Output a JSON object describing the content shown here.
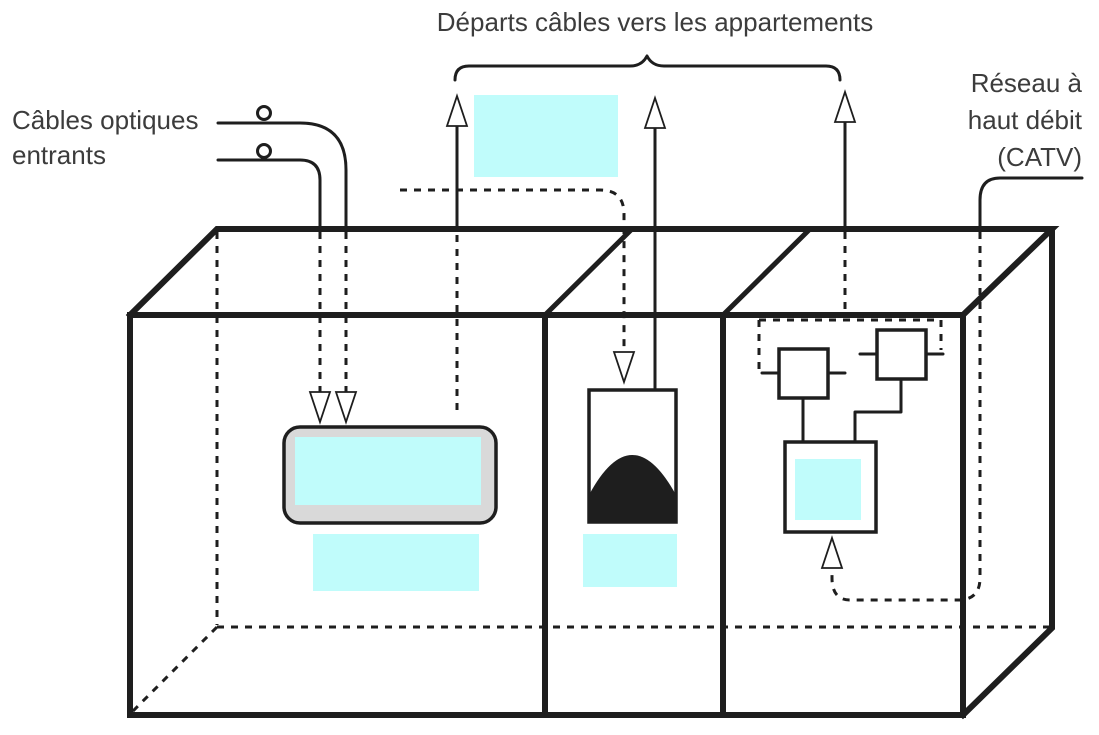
{
  "labels": {
    "top": "Départs câbles vers les appartements",
    "left_line1": "Câbles optiques",
    "left_line2": "entrants",
    "right_line1": "Réseau à",
    "right_line2": "haut débit",
    "right_line3": "(CATV)"
  },
  "colors": {
    "placeholder": "#c0fcfb",
    "panel_frame": "#d9d9d9",
    "line": "#1e1e1e",
    "text": "#3c3c3c"
  }
}
